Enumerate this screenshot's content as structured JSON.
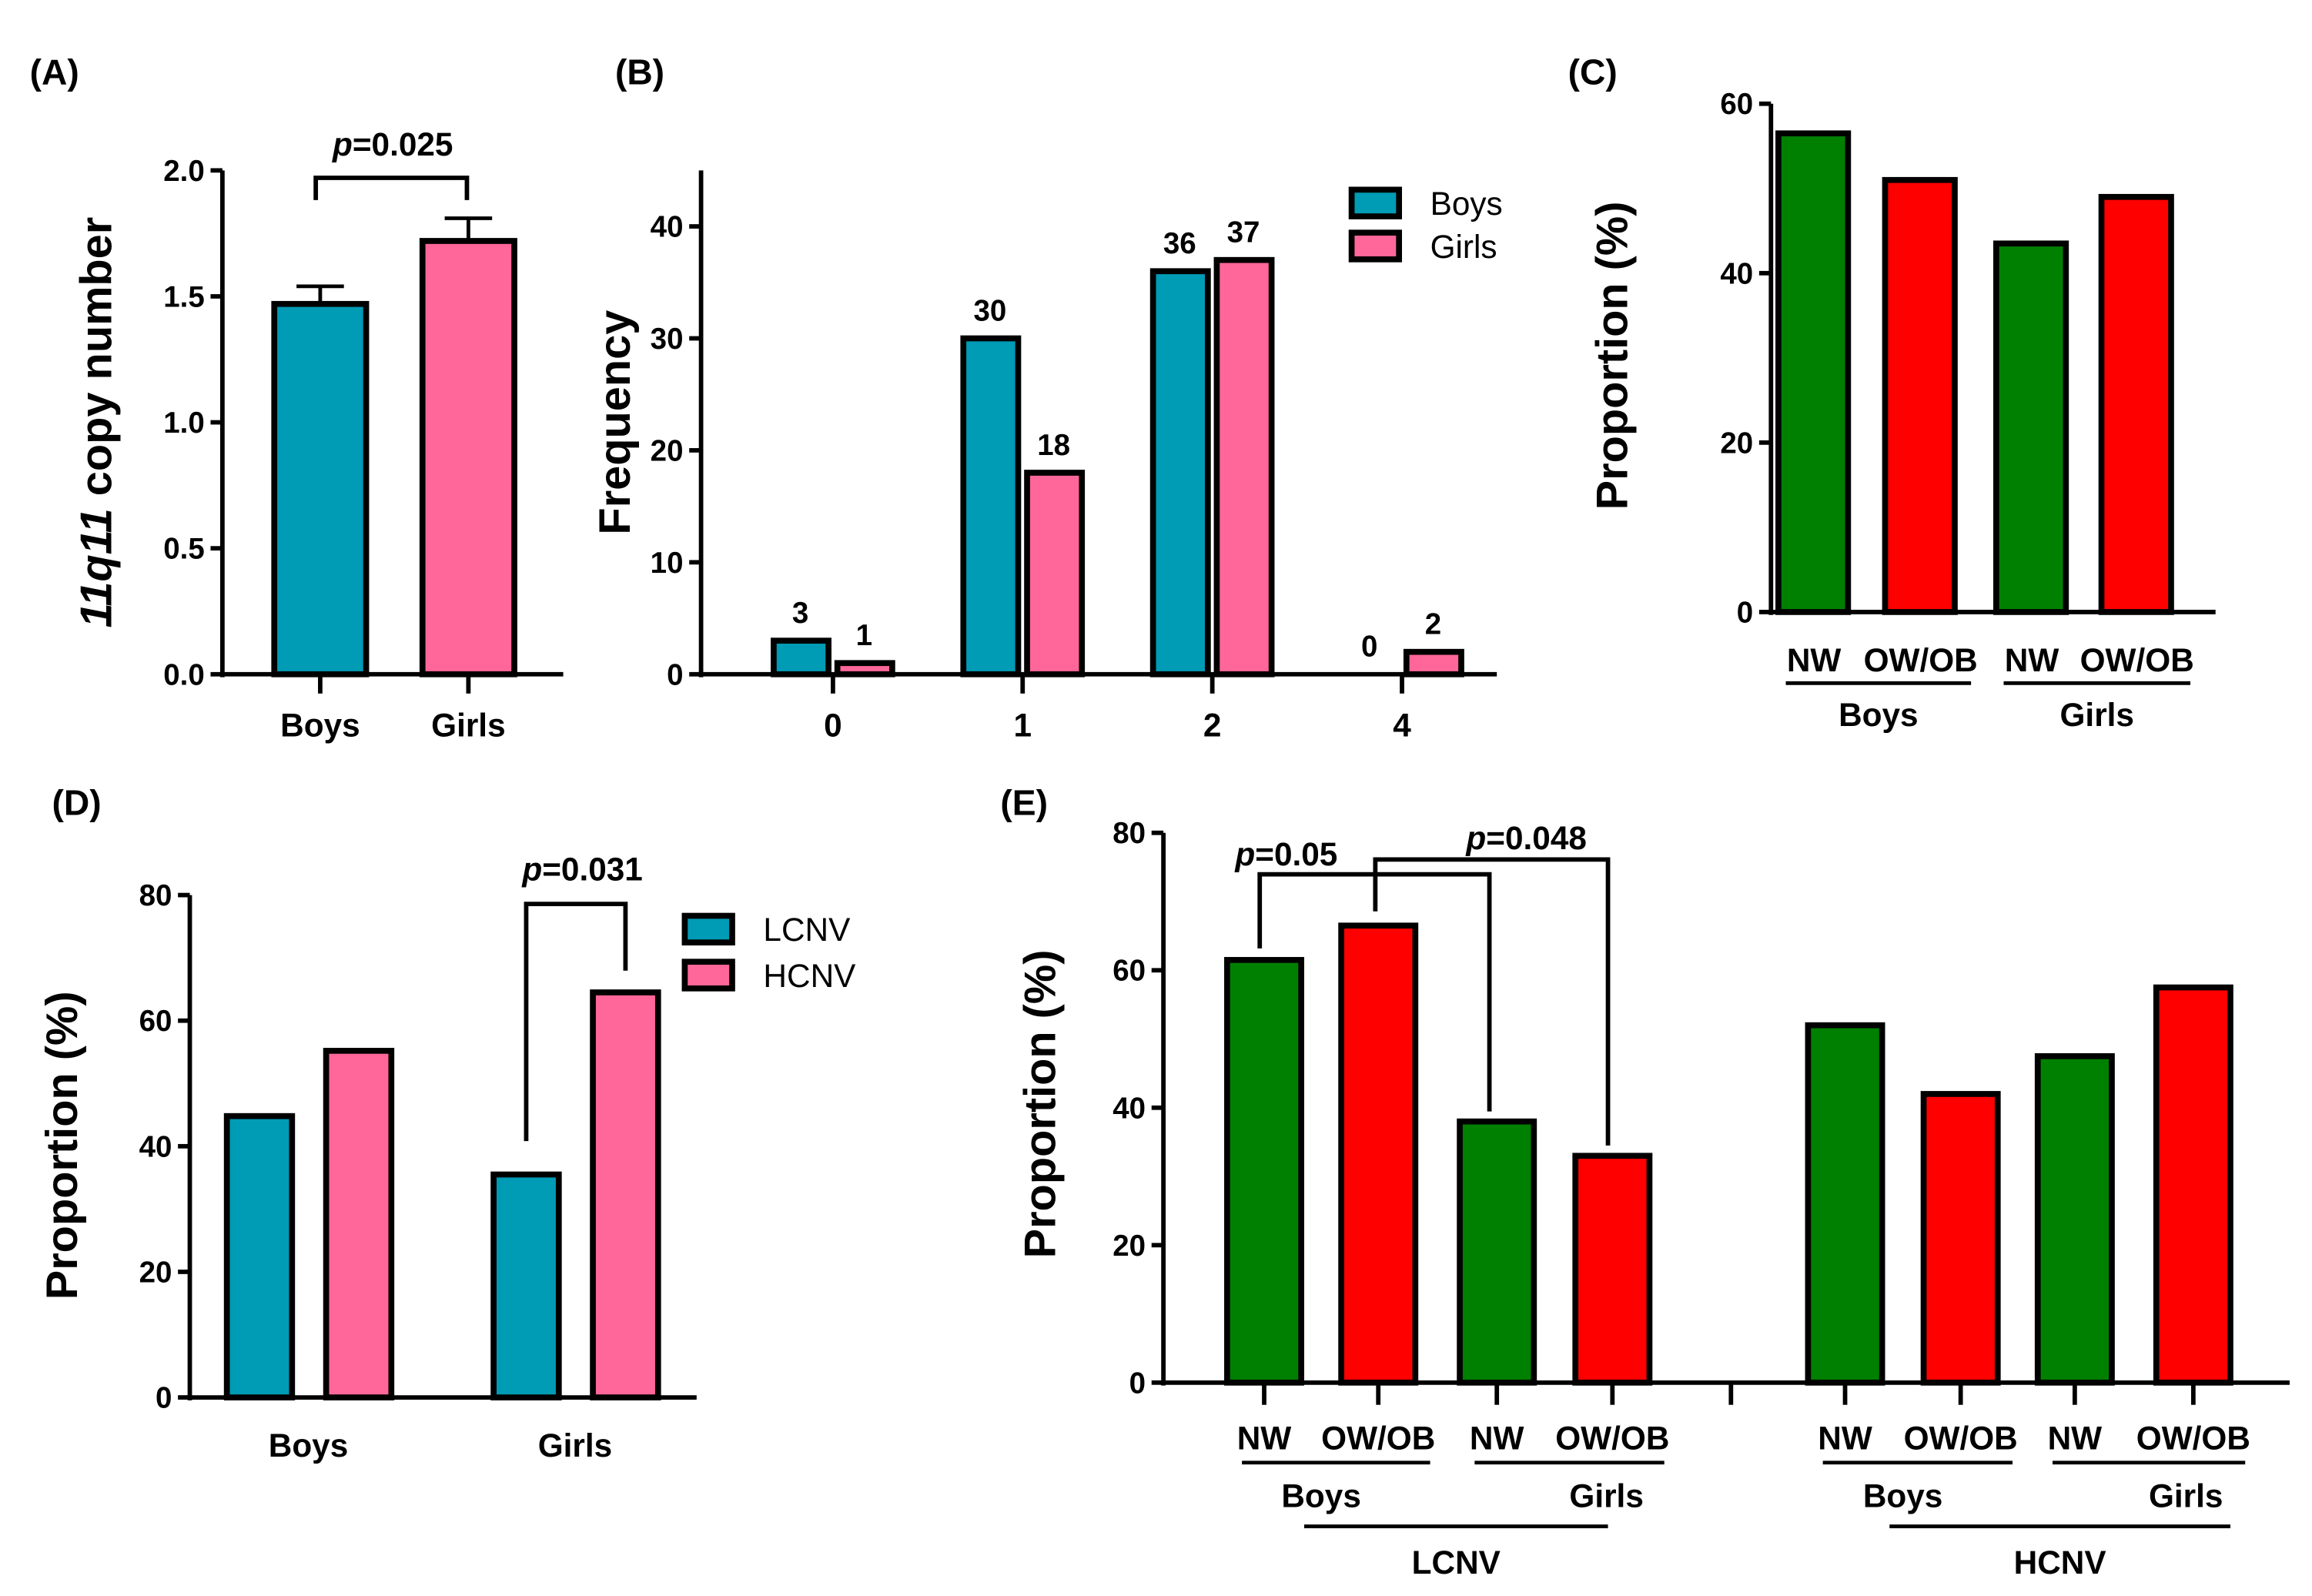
{
  "colors": {
    "boys": "#009bb5",
    "girls": "#ff6699",
    "nw": "#008000",
    "owob": "#ff0000",
    "axis": "#000000"
  },
  "chart_data": [
    {
      "id": "A",
      "panel": "(A)",
      "type": "bar",
      "ylabel_italic": "11q11",
      "ylabel": " copy number",
      "ylim": [
        0,
        2.0
      ],
      "yticks": [
        "0.0",
        "0.5",
        "1.0",
        "1.5",
        "2.0"
      ],
      "categories": [
        "Boys",
        "Girls"
      ],
      "values": [
        1.47,
        1.72
      ],
      "errors": [
        0.07,
        0.09
      ],
      "bar_colors": [
        "boys",
        "girls"
      ],
      "annotations": [
        {
          "p": "p",
          "text": "=0.025",
          "between": [
            0,
            1
          ]
        }
      ]
    },
    {
      "id": "B",
      "panel": "(B)",
      "type": "bar",
      "ylabel": "Frequency",
      "ylim": [
        0,
        45
      ],
      "yticks": [
        "0",
        "10",
        "20",
        "30",
        "40"
      ],
      "categories": [
        "0",
        "1",
        "2",
        "4"
      ],
      "series": [
        {
          "name": "Boys",
          "values": [
            3,
            30,
            36,
            0
          ]
        },
        {
          "name": "Girls",
          "values": [
            1,
            18,
            37,
            2
          ]
        }
      ],
      "data_labels": [
        [
          "3",
          "30",
          "36",
          "0"
        ],
        [
          "1",
          "18",
          "37",
          "2"
        ]
      ],
      "legend": "top-right"
    },
    {
      "id": "C",
      "panel": "(C)",
      "type": "bar",
      "ylabel": "Proportion (%)",
      "ylim": [
        0,
        60
      ],
      "yticks": [
        "0",
        "20",
        "40",
        "60"
      ],
      "categories": [
        "NW",
        "OW/OB",
        "NW",
        "OW/OB"
      ],
      "groups": [
        "Boys",
        "Girls"
      ],
      "values": [
        56.5,
        51,
        43.5,
        49
      ]
    },
    {
      "id": "D",
      "panel": "(D)",
      "type": "bar",
      "ylabel": "Proportion (%)",
      "ylim": [
        0,
        80
      ],
      "yticks": [
        "0",
        "20",
        "40",
        "60",
        "80"
      ],
      "categories": [
        "Boys",
        "Girls"
      ],
      "series": [
        {
          "name": "LCNV",
          "values": [
            44.8,
            35.5
          ]
        },
        {
          "name": "HCNV",
          "values": [
            55.2,
            64.5
          ]
        }
      ],
      "legend": "top-right",
      "annotations": [
        {
          "p": "p",
          "text": "=0.031",
          "group": "Girls"
        }
      ]
    },
    {
      "id": "E",
      "panel": "(E)",
      "type": "bar",
      "ylabel": "Proportion (%)",
      "ylim": [
        0,
        80
      ],
      "yticks": [
        "0",
        "20",
        "40",
        "60",
        "80"
      ],
      "categories": [
        "NW",
        "OW/OB",
        "NW",
        "OW/OB",
        "NW",
        "OW/OB",
        "NW",
        "OW/OB"
      ],
      "groups": [
        "Boys",
        "Girls",
        "Boys",
        "Girls"
      ],
      "supergroups": [
        "LCNV",
        "HCNV"
      ],
      "values": [
        61.5,
        66.5,
        38,
        33,
        52,
        42,
        47.5,
        57.5
      ],
      "annotations": [
        {
          "p": "p",
          "text": "=0.05",
          "between": [
            0,
            2
          ]
        },
        {
          "p": "p",
          "text": "=0.048",
          "between": [
            1,
            3
          ]
        }
      ]
    }
  ]
}
